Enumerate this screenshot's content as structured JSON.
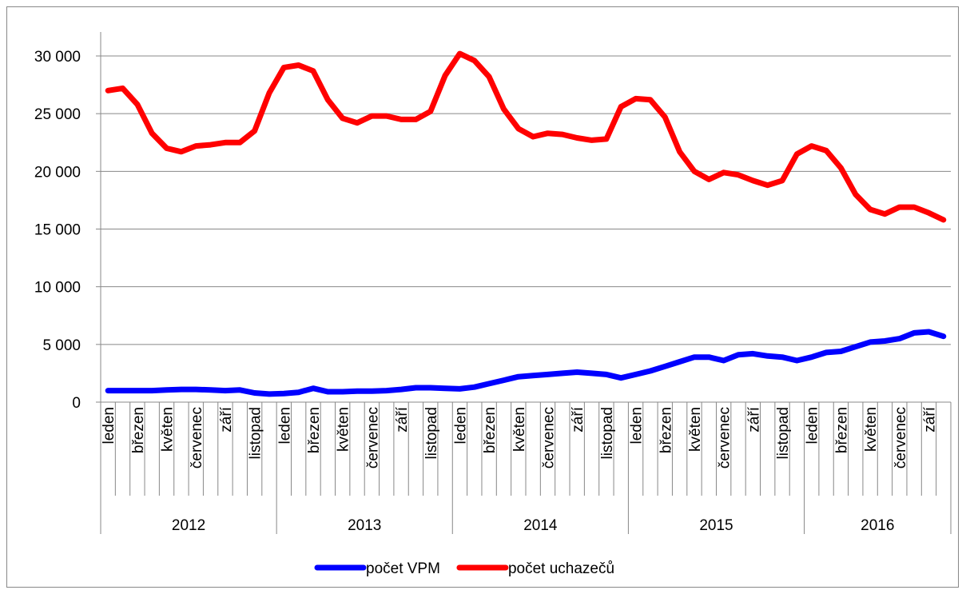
{
  "chart_data": {
    "type": "line",
    "categories": [
      "leden",
      null,
      "březen",
      null,
      "květen",
      null,
      "červenec",
      null,
      "září",
      null,
      "listopad",
      null,
      "leden",
      null,
      "březen",
      null,
      "květen",
      null,
      "červenec",
      null,
      "září",
      null,
      "listopad",
      null,
      "leden",
      null,
      "březen",
      null,
      "květen",
      null,
      "červenec",
      null,
      "září",
      null,
      "listopad",
      null,
      "leden",
      null,
      "březen",
      null,
      "květen",
      null,
      "červenec",
      null,
      "září",
      null,
      "listopad",
      null,
      "leden",
      null,
      "březen",
      null,
      "květen",
      null,
      "červenec",
      null,
      "září",
      null
    ],
    "category_groups": [
      "2012",
      "2013",
      "2014",
      "2015",
      "2016"
    ],
    "series": [
      {
        "name": "počet VPM",
        "color": "#0000ff",
        "values": [
          1000,
          1000,
          1000,
          1000,
          1050,
          1100,
          1100,
          1050,
          1000,
          1050,
          800,
          700,
          750,
          850,
          1200,
          900,
          900,
          950,
          950,
          1000,
          1100,
          1250,
          1250,
          1200,
          1150,
          1300,
          1600,
          1900,
          2200,
          2300,
          2400,
          2500,
          2600,
          2500,
          2400,
          2100,
          2400,
          2700,
          3100,
          3500,
          3900,
          3900,
          3600,
          4100,
          4200,
          4000,
          3900,
          3600,
          3900,
          4300,
          4400,
          4800,
          5200,
          5300,
          5500,
          6000,
          6100,
          5700
        ]
      },
      {
        "name": "počet uchazečů",
        "color": "#ff0000",
        "values": [
          27000,
          27200,
          25800,
          23300,
          22000,
          21700,
          22200,
          22300,
          22500,
          22500,
          23500,
          26800,
          29000,
          29200,
          28700,
          26200,
          24600,
          24200,
          24800,
          24800,
          24500,
          24500,
          25200,
          28300,
          30200,
          29600,
          28200,
          25400,
          23700,
          23000,
          23300,
          23200,
          22900,
          22700,
          22800,
          25600,
          26300,
          26200,
          24700,
          21700,
          20000,
          19300,
          19900,
          19700,
          19200,
          18800,
          19200,
          21500,
          22200,
          21800,
          20300,
          18000,
          16700,
          16300,
          16900,
          16900,
          16400,
          15800
        ]
      }
    ],
    "ylim": [
      0,
      30000
    ],
    "yticks": [
      0,
      {
        "value": 5000,
        "label": "5 000"
      },
      {
        "value": 10000,
        "label": "10 000"
      },
      {
        "value": 15000,
        "label": "15 000"
      },
      {
        "value": 20000,
        "label": "20 000"
      },
      {
        "value": 25000,
        "label": "25 000"
      },
      {
        "value": 30000,
        "label": "30 000"
      }
    ],
    "grid": true,
    "legend": "bottom"
  }
}
